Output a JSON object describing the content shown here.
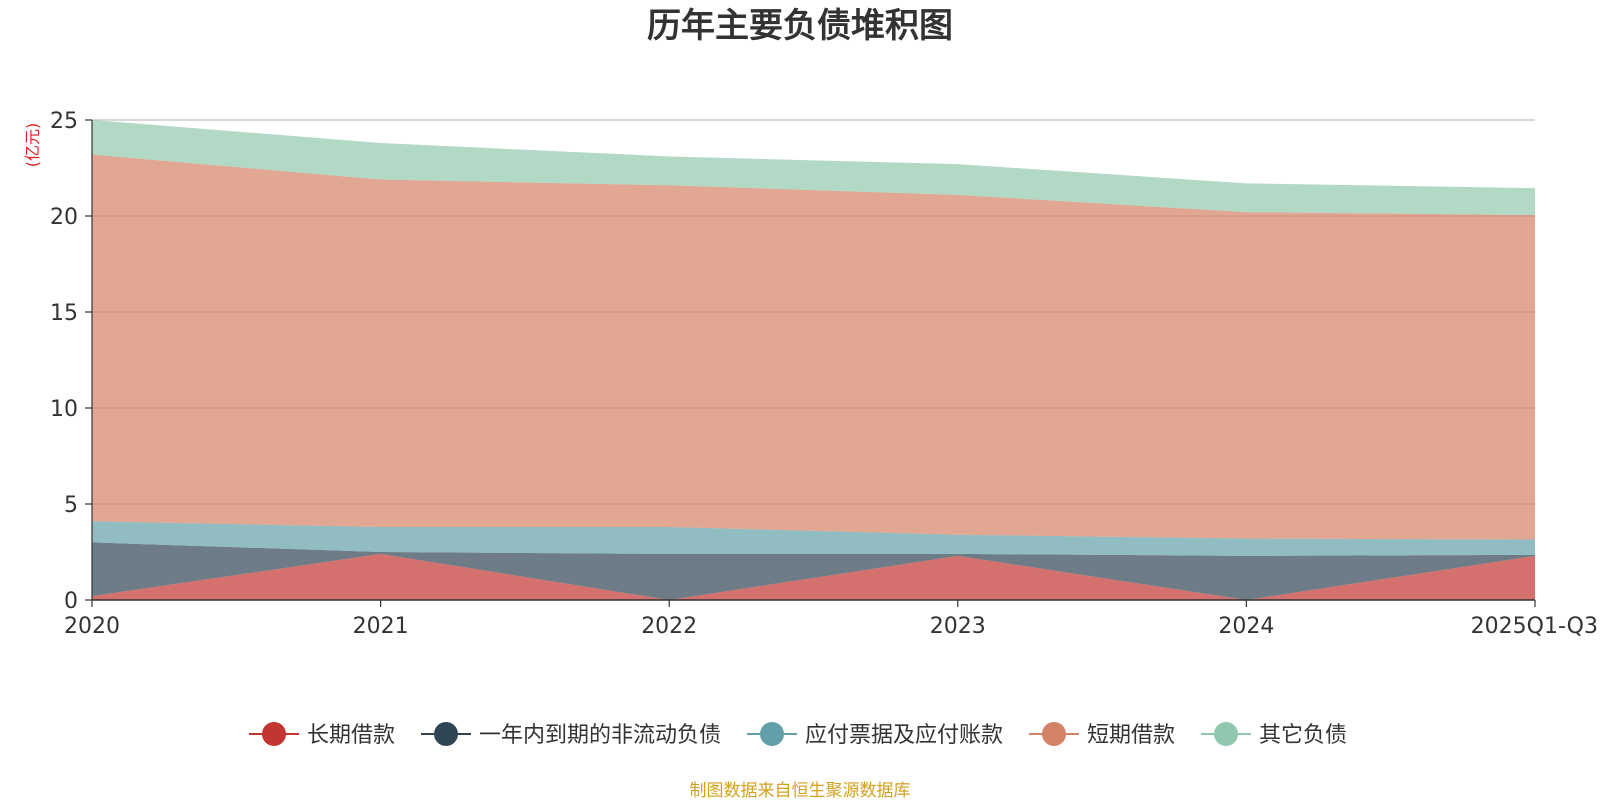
{
  "chart_data": {
    "type": "area",
    "stacked": true,
    "title": "历年主要负债堆积图",
    "unit_label": "(亿元)",
    "categories": [
      "2020",
      "2021",
      "2022",
      "2023",
      "2024",
      "2025Q1-Q3"
    ],
    "ylim": [
      0,
      25
    ],
    "yticks": [
      "0",
      "5",
      "10",
      "15",
      "20",
      "25"
    ],
    "grid": true,
    "legend_position": "bottom",
    "series": [
      {
        "name": "长期借款",
        "color": "#c23531",
        "values": [
          0.2,
          2.4,
          0.0,
          2.3,
          0.0,
          2.3
        ]
      },
      {
        "name": "一年内到期的非流动负债",
        "color": "#2f4554",
        "values": [
          2.8,
          0.1,
          2.4,
          0.1,
          2.3,
          0.05
        ]
      },
      {
        "name": "应付票据及应付账款",
        "color": "#61a0a8",
        "values": [
          1.1,
          1.3,
          1.4,
          1.0,
          0.9,
          0.8
        ]
      },
      {
        "name": "短期借款",
        "color": "#d48265",
        "values": [
          19.1,
          18.1,
          17.8,
          17.7,
          17.0,
          16.9
        ]
      },
      {
        "name": "其它负债",
        "color": "#91c7ae",
        "values": [
          1.8,
          1.9,
          1.5,
          1.6,
          1.5,
          1.4
        ]
      }
    ],
    "source": "制图数据来自恒生聚源数据库"
  }
}
